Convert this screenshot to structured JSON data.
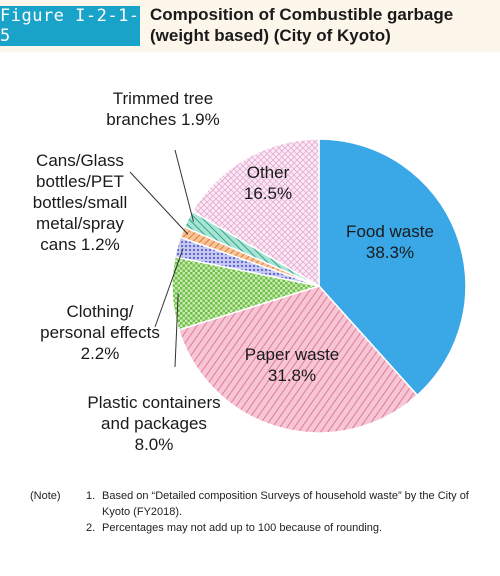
{
  "figure_label": "Figure I-2-1-5",
  "title_line1": "Composition of Combustible garbage",
  "title_line2": "(weight based)  (City of Kyoto)",
  "chart_data": {
    "type": "pie",
    "unit": "%",
    "slices": [
      {
        "name": "Food waste",
        "value": 38.3,
        "label_lines": [
          "Food waste",
          "38.3%"
        ],
        "color": "#3aa7e6"
      },
      {
        "name": "Paper waste",
        "value": 31.8,
        "label_lines": [
          "Paper waste",
          "31.8%"
        ],
        "color": "#f2a9bf"
      },
      {
        "name": "Plastic containers and packages",
        "value": 8.0,
        "label_lines": [
          "Plastic containers",
          "and packages",
          "8.0%"
        ],
        "color": "#9fd47c"
      },
      {
        "name": "Clothing/personal effects",
        "value": 2.2,
        "label_lines": [
          "Clothing/",
          "personal effects",
          "2.2%"
        ],
        "color": "#8f94e0"
      },
      {
        "name": "Cans/Glass bottles/PET bottles/small metal/spray cans",
        "value": 1.2,
        "label_lines": [
          "Cans/Glass",
          "bottles/PET",
          "bottles/small",
          "metal/spray",
          "cans 1.2%"
        ],
        "color": "#f2a062"
      },
      {
        "name": "Trimmed tree branches",
        "value": 1.9,
        "label_lines": [
          "Trimmed tree",
          "branches 1.9%"
        ],
        "color": "#5fc8b0"
      },
      {
        "name": "Other",
        "value": 16.5,
        "label_lines": [
          "Other",
          "16.5%"
        ],
        "color": "#f3d3ea"
      }
    ]
  },
  "notes": {
    "key": "(Note)",
    "items": [
      {
        "num": "1.",
        "text": "Based on “Detailed composition Surveys of household waste” by the City of Kyoto (FY2018)."
      },
      {
        "num": "2.",
        "text": "Percentages may not add up to 100 because of rounding."
      }
    ]
  }
}
